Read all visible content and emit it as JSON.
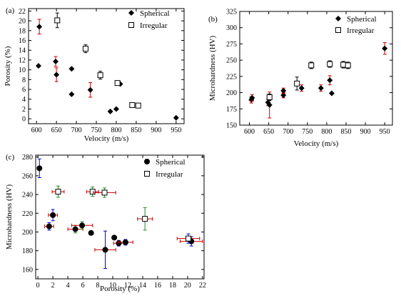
{
  "chart_data": [
    {
      "type": "scatter",
      "panel_label": "(a)",
      "xlabel": "Velocity (m/s)",
      "ylabel": "Porosity (%)",
      "xlim": [
        580,
        970
      ],
      "ylim": [
        -1,
        22.5
      ],
      "xticks": [
        600,
        650,
        700,
        750,
        800,
        850,
        900,
        950
      ],
      "yticks": [
        0,
        2,
        4,
        6,
        8,
        10,
        12,
        14,
        16,
        18,
        20,
        22
      ],
      "legend_position": "top-right",
      "series": [
        {
          "name": "Spherical",
          "marker": "filled-diamond",
          "points": [
            {
              "x": 605,
              "y": 10.8
            },
            {
              "x": 607,
              "y": 18.8,
              "yerr": 1.5,
              "err_color": "#cc0000"
            },
            {
              "x": 648,
              "y": 11.7,
              "yerr": 1.0,
              "err_color": "#cc0000"
            },
            {
              "x": 650,
              "y": 9.0,
              "yerr": 1.4,
              "err_color": "#cc0000"
            },
            {
              "x": 688,
              "y": 10.2
            },
            {
              "x": 688,
              "y": 5.0
            },
            {
              "x": 735,
              "y": 5.9,
              "yerr": 1.5,
              "err_color": "#cc0000"
            },
            {
              "x": 785,
              "y": 1.5
            },
            {
              "x": 800,
              "y": 2.0
            },
            {
              "x": 810,
              "y": 7.1
            },
            {
              "x": 950,
              "y": 0.2
            }
          ]
        },
        {
          "name": "Irregular",
          "marker": "open-square",
          "points": [
            {
              "x": 652,
              "y": 20.1,
              "yerr": 1.5,
              "err_color": "#000000"
            },
            {
              "x": 723,
              "y": 14.3,
              "yerr": 0.8,
              "err_color": "#000000"
            },
            {
              "x": 760,
              "y": 8.9,
              "yerr": 0.8,
              "err_color": "#000000"
            },
            {
              "x": 803,
              "y": 7.3
            },
            {
              "x": 840,
              "y": 2.8
            },
            {
              "x": 855,
              "y": 2.7
            }
          ]
        }
      ]
    },
    {
      "type": "scatter",
      "panel_label": "(b)",
      "xlabel": "Velocity (m/s)",
      "ylabel": "Microhardness (HV)",
      "xlim": [
        575,
        970
      ],
      "ylim": [
        150,
        325
      ],
      "xticks": [
        600,
        650,
        700,
        750,
        800,
        850,
        900,
        950
      ],
      "yticks": [
        150,
        175,
        200,
        225,
        250,
        275,
        300,
        325
      ],
      "legend_position": "top-right",
      "series": [
        {
          "name": "Spherical",
          "marker": "filled-diamond",
          "points": [
            {
              "x": 605,
              "y": 189,
              "yerr": 5,
              "err_color": "#cc0000"
            },
            {
              "x": 607,
              "y": 192,
              "yerr": 5,
              "err_color": "#cc0000"
            },
            {
              "x": 648,
              "y": 185,
              "yerr": 5,
              "err_color": "#cc0000"
            },
            {
              "x": 652,
              "y": 181,
              "yerr": 20,
              "err_color": "#cc0000"
            },
            {
              "x": 688,
              "y": 196,
              "yerr": 4,
              "err_color": "#cc0000"
            },
            {
              "x": 688,
              "y": 203,
              "yerr": 4,
              "err_color": "#cc0000"
            },
            {
              "x": 735,
              "y": 207,
              "yerr": 5,
              "err_color": "#cc0000"
            },
            {
              "x": 785,
              "y": 207,
              "yerr": 5,
              "err_color": "#cc0000"
            },
            {
              "x": 808,
              "y": 219,
              "yerr": 7,
              "err_color": "#cc0000"
            },
            {
              "x": 813,
              "y": 199
            },
            {
              "x": 950,
              "y": 268,
              "yerr": 9,
              "err_color": "#cc0000"
            }
          ]
        },
        {
          "name": "Irregular",
          "marker": "open-square",
          "points": [
            {
              "x": 652,
              "y": 193,
              "yerr": 5,
              "err_color": "#000000"
            },
            {
              "x": 723,
              "y": 214,
              "yerr": 10,
              "err_color": "#000000"
            },
            {
              "x": 760,
              "y": 242,
              "yerr": 5,
              "err_color": "#000000"
            },
            {
              "x": 808,
              "y": 244,
              "yerr": 5,
              "err_color": "#000000"
            },
            {
              "x": 843,
              "y": 243,
              "yerr": 5,
              "err_color": "#000000"
            },
            {
              "x": 855,
              "y": 242,
              "yerr": 5,
              "err_color": "#000000"
            }
          ]
        }
      ]
    },
    {
      "type": "scatter",
      "panel_label": "(c)",
      "xlabel": "Porosity (%)",
      "ylabel": "Microhardness (HV)",
      "xlim": [
        -0.3,
        22.2
      ],
      "ylim": [
        150,
        282
      ],
      "xticks": [
        0,
        2,
        4,
        6,
        8,
        10,
        12,
        14,
        16,
        18,
        20,
        22
      ],
      "yticks": [
        160,
        180,
        200,
        220,
        240,
        260,
        280
      ],
      "legend_position": "top-right",
      "series": [
        {
          "name": "Spherical",
          "marker": "filled-circle",
          "points": [
            {
              "x": 0.2,
              "y": 268,
              "yerr": 10,
              "xerr": 0.2,
              "err_color": "#0000cc"
            },
            {
              "x": 1.5,
              "y": 206,
              "yerr": 4,
              "xerr": 0.6,
              "err_color": "#cc0000",
              "yerr_color": "#0000cc"
            },
            {
              "x": 2.0,
              "y": 218,
              "yerr": 6,
              "xerr": 0.6,
              "err_color": "#cc0000",
              "yerr_color": "#0000cc"
            },
            {
              "x": 5.0,
              "y": 203,
              "yerr": 4,
              "xerr": 1.0,
              "err_color": "#cc0000",
              "yerr_color": "#228b22"
            },
            {
              "x": 5.9,
              "y": 207,
              "yerr": 4,
              "xerr": 1.4,
              "err_color": "#cc0000",
              "yerr_color": "#228b22"
            },
            {
              "x": 7.1,
              "y": 199
            },
            {
              "x": 9.0,
              "y": 181,
              "yerr": 20,
              "xerr": 1.4,
              "err_color": "#cc0000",
              "yerr_color": "#0000cc"
            },
            {
              "x": 10.2,
              "y": 194
            },
            {
              "x": 10.8,
              "y": 188,
              "yerr": 3,
              "xerr": 0.7,
              "err_color": "#cc0000",
              "yerr_color": "#0000cc"
            },
            {
              "x": 11.7,
              "y": 189,
              "yerr": 3,
              "xerr": 1.0,
              "err_color": "#cc0000",
              "yerr_color": "#0000cc"
            },
            {
              "x": 20.5,
              "y": 190,
              "yerr": 5,
              "xerr": 1.5,
              "err_color": "#cc0000",
              "yerr_color": "#0000cc"
            }
          ]
        },
        {
          "name": "Irregular",
          "marker": "open-square",
          "points": [
            {
              "x": 2.7,
              "y": 243,
              "yerr": 6,
              "xerr": 0.8,
              "err_color": "#cc0000",
              "yerr_color": "#228b22"
            },
            {
              "x": 7.3,
              "y": 243,
              "yerr": 5,
              "xerr": 0.8,
              "err_color": "#cc0000",
              "yerr_color": "#228b22"
            },
            {
              "x": 8.9,
              "y": 242,
              "yerr": 5,
              "xerr": 1.5,
              "err_color": "#cc0000",
              "yerr_color": "#228b22"
            },
            {
              "x": 14.3,
              "y": 214,
              "yerr": 12,
              "xerr": 1.0,
              "err_color": "#cc0000",
              "yerr_color": "#228b22"
            },
            {
              "x": 20.1,
              "y": 193,
              "yerr": 5,
              "xerr": 1.5,
              "err_color": "#cc0000",
              "yerr_color": "#0000cc"
            }
          ]
        }
      ]
    }
  ]
}
